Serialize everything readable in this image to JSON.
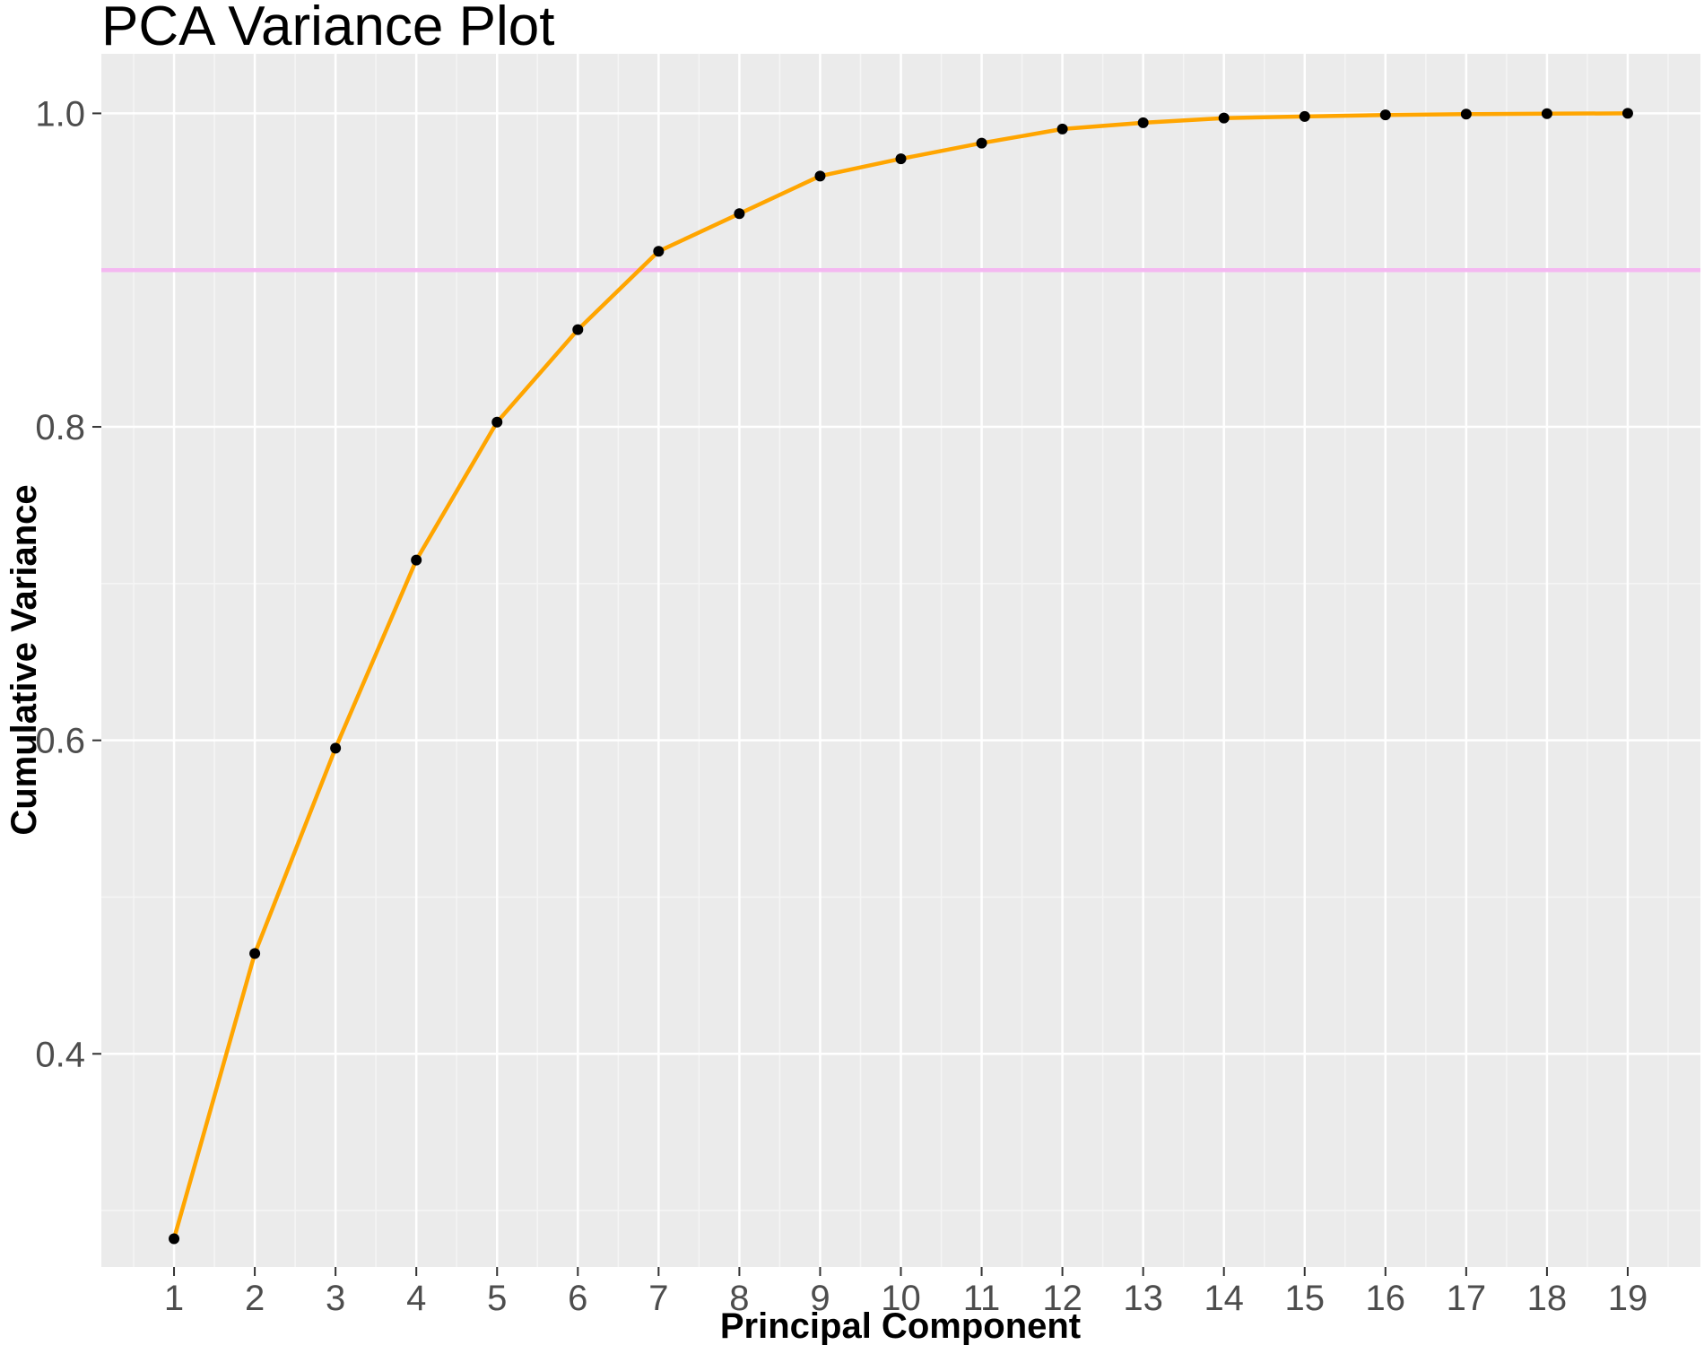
{
  "chart_data": {
    "type": "line",
    "title": "PCA Variance Plot",
    "xlabel": "Principal Component",
    "ylabel": "Cumulative Variance",
    "x": [
      1,
      2,
      3,
      4,
      5,
      6,
      7,
      8,
      9,
      10,
      11,
      12,
      13,
      14,
      15,
      16,
      17,
      18,
      19
    ],
    "series": [
      {
        "values": [
          0.282,
          0.464,
          0.595,
          0.715,
          0.803,
          0.862,
          0.912,
          0.936,
          0.96,
          0.971,
          0.981,
          0.99,
          0.994,
          0.997,
          0.998,
          0.999,
          0.9995,
          0.9998,
          1.0
        ]
      }
    ],
    "reference_line": {
      "y": 0.9,
      "color": "#f4b8f1"
    },
    "xlim": [
      0.1,
      19.9
    ],
    "ylim": [
      0.264,
      1.038
    ],
    "x_ticks": [
      1,
      2,
      3,
      4,
      5,
      6,
      7,
      8,
      9,
      10,
      11,
      12,
      13,
      14,
      15,
      16,
      17,
      18,
      19
    ],
    "y_ticks": [
      0.4,
      0.6,
      0.8,
      1.0
    ],
    "y_tick_labels": [
      "0.4",
      "0.6",
      "0.8",
      "1.0"
    ],
    "grid": true,
    "legend": "none",
    "colors": {
      "panel_background": "#ebebeb",
      "grid_major": "#ffffff",
      "grid_minor": "#f5f5f5",
      "line": "#ffa500",
      "point": "#000000",
      "reference_line": "#f4b8f1"
    }
  }
}
